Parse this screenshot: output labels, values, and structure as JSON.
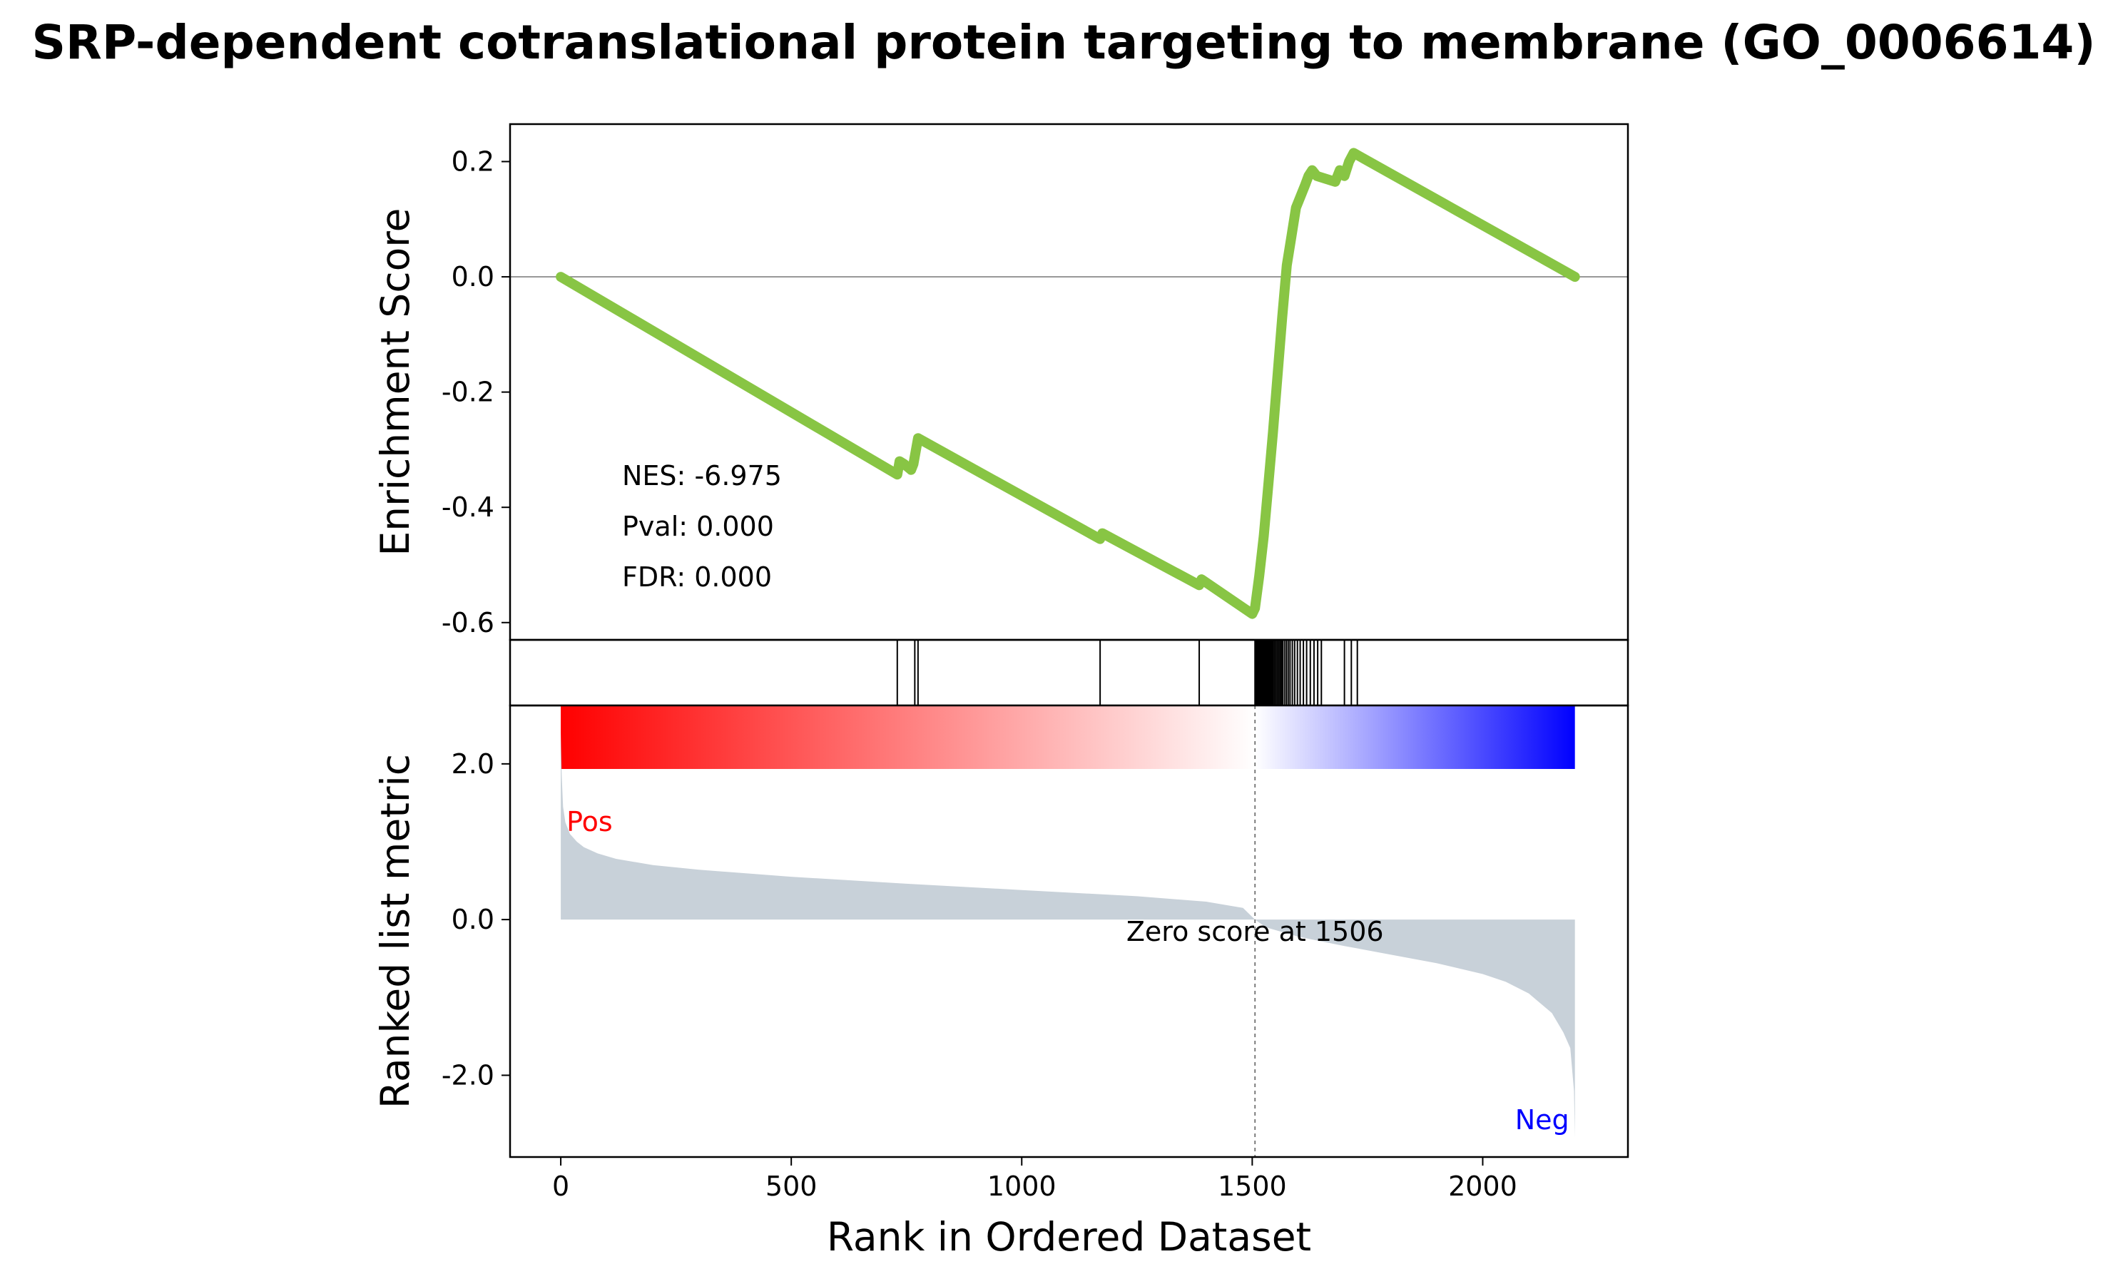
{
  "chart_data": {
    "type": "line",
    "title": "SRP-dependent cotranslational protein targeting to membrane (GO_0006614)",
    "enrichment": {
      "ylabel": "Enrichment Score",
      "ylim": [
        -0.63,
        0.265
      ],
      "yticks": [
        0.2,
        0.0,
        -0.2,
        -0.4,
        -0.6
      ],
      "ytick_labels": [
        "0.2",
        "0.0",
        "-0.2",
        "-0.4",
        "-0.6"
      ],
      "line_color": "#88c544",
      "zero_line": true,
      "x": [
        0,
        730,
        735,
        745,
        760,
        765,
        775,
        1170,
        1175,
        1385,
        1390,
        1500,
        1506,
        1515,
        1525,
        1535,
        1545,
        1555,
        1565,
        1575,
        1585,
        1595,
        1605,
        1615,
        1622,
        1630,
        1640,
        1680,
        1690,
        1700,
        1710,
        1720,
        2200
      ],
      "y": [
        0.0,
        -0.343,
        -0.32,
        -0.325,
        -0.335,
        -0.325,
        -0.28,
        -0.455,
        -0.445,
        -0.535,
        -0.525,
        -0.585,
        -0.575,
        -0.52,
        -0.45,
        -0.36,
        -0.27,
        -0.17,
        -0.07,
        0.02,
        0.07,
        0.12,
        0.14,
        0.16,
        0.175,
        0.185,
        0.175,
        0.165,
        0.185,
        0.175,
        0.2,
        0.215,
        0.0
      ],
      "stats": [
        "NES: -6.975",
        "Pval: 0.000",
        "FDR: 0.000"
      ]
    },
    "hits": {
      "positions": [
        730,
        768,
        775,
        1170,
        1385,
        1506,
        1508,
        1510,
        1512,
        1514,
        1516,
        1518,
        1520,
        1522,
        1524,
        1526,
        1528,
        1530,
        1532,
        1534,
        1536,
        1538,
        1540,
        1542,
        1545,
        1548,
        1551,
        1554,
        1557,
        1560,
        1563,
        1566,
        1570,
        1574,
        1578,
        1582,
        1587,
        1592,
        1598,
        1604,
        1611,
        1618,
        1626,
        1634,
        1642,
        1650,
        1700,
        1715,
        1728
      ]
    },
    "colorbar": {
      "zero_index": 1506,
      "neg_color": "#ff0000",
      "pos_color": "#0000ff"
    },
    "ranked": {
      "ylabel": "Ranked list metric",
      "xlabel": "Rank in Ordered Dataset",
      "xlim": [
        -110,
        2315
      ],
      "ylim": [
        -3.05,
        2.75
      ],
      "xticks": [
        0,
        500,
        1000,
        1500,
        2000
      ],
      "xtick_labels": [
        "0",
        "500",
        "1000",
        "1500",
        "2000"
      ],
      "yticks": [
        2.0,
        0.0,
        -2.0
      ],
      "ytick_labels": [
        "2.0",
        "0.0",
        "-2.0"
      ],
      "fill_color": "#c8d1d9",
      "x": [
        0,
        2,
        5,
        10,
        20,
        35,
        50,
        80,
        120,
        200,
        300,
        500,
        750,
        1000,
        1250,
        1400,
        1480,
        1506,
        1530,
        1600,
        1700,
        1800,
        1900,
        2000,
        2050,
        2100,
        2150,
        2175,
        2190,
        2198,
        2200
      ],
      "y": [
        2.4,
        1.85,
        1.45,
        1.25,
        1.1,
        1.0,
        0.93,
        0.85,
        0.78,
        0.7,
        0.64,
        0.55,
        0.46,
        0.38,
        0.3,
        0.23,
        0.15,
        0.0,
        -0.1,
        -0.22,
        -0.34,
        -0.45,
        -0.56,
        -0.7,
        -0.8,
        -0.95,
        -1.2,
        -1.45,
        -1.65,
        -2.2,
        -2.8
      ],
      "pos_label": "Pos",
      "neg_label": "Neg",
      "pos_color": "#ff0000",
      "neg_color": "#0000ff",
      "zero_text": "Zero score at 1506"
    }
  }
}
